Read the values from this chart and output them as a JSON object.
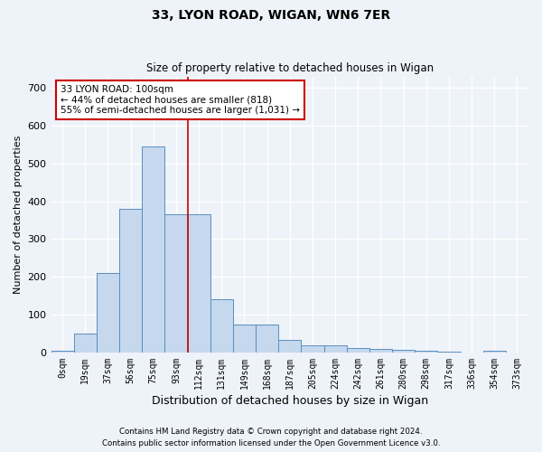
{
  "title_line1": "33, LYON ROAD, WIGAN, WN6 7ER",
  "title_line2": "Size of property relative to detached houses in Wigan",
  "xlabel": "Distribution of detached houses by size in Wigan",
  "ylabel": "Number of detached properties",
  "bar_color": "#c5d8ed",
  "bar_edge_color": "#5a8fc0",
  "categories": [
    "0sqm",
    "19sqm",
    "37sqm",
    "56sqm",
    "75sqm",
    "93sqm",
    "112sqm",
    "131sqm",
    "149sqm",
    "168sqm",
    "187sqm",
    "205sqm",
    "224sqm",
    "242sqm",
    "261sqm",
    "280sqm",
    "298sqm",
    "317sqm",
    "336sqm",
    "354sqm",
    "373sqm"
  ],
  "values": [
    4,
    50,
    210,
    380,
    545,
    365,
    365,
    140,
    75,
    75,
    33,
    20,
    18,
    12,
    10,
    8,
    5,
    2,
    1,
    4,
    1
  ],
  "ylim": [
    0,
    730
  ],
  "yticks": [
    0,
    100,
    200,
    300,
    400,
    500,
    600,
    700
  ],
  "vline_x": 5.5,
  "annotation_text": "33 LYON ROAD: 100sqm\n← 44% of detached houses are smaller (818)\n55% of semi-detached houses are larger (1,031) →",
  "annotation_box_color": "#ffffff",
  "annotation_box_edge_color": "#cc0000",
  "vline_color": "#cc0000",
  "footnote1": "Contains HM Land Registry data © Crown copyright and database right 2024.",
  "footnote2": "Contains public sector information licensed under the Open Government Licence v3.0.",
  "background_color": "#eef2f9",
  "grid_color": "#ffffff"
}
